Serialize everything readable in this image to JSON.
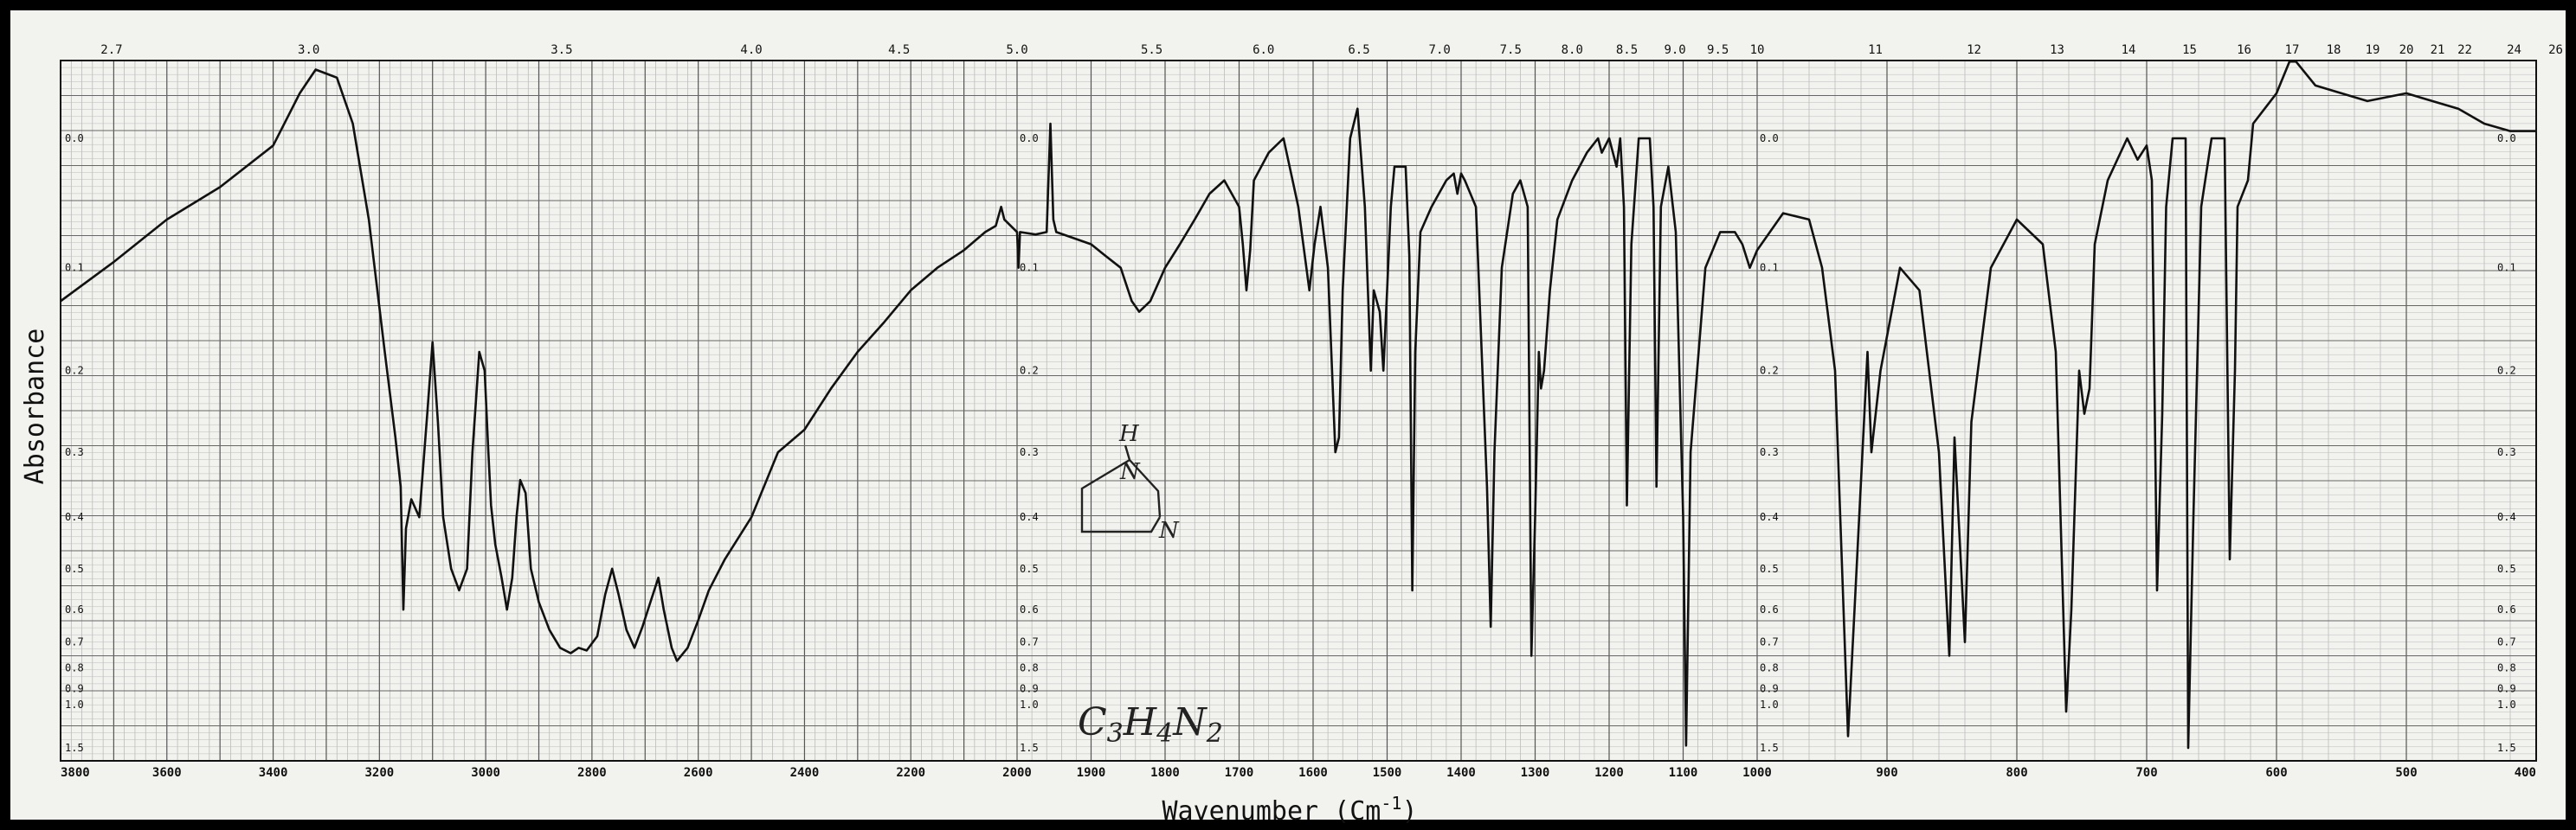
{
  "chart_data": {
    "type": "line",
    "title": "",
    "xlabel": "Wavenumber (Cm",
    "xlabel_sup": "-1",
    "xlabel_close": ")",
    "ylabel": "Absorbance",
    "x_axis": {
      "scale": "piecewise-linear",
      "range": [
        3800,
        400
      ],
      "break_points": [
        2000,
        1000
      ],
      "ticks": [
        3800,
        3600,
        3400,
        3200,
        3000,
        2800,
        2600,
        2400,
        2200,
        2000,
        1900,
        1800,
        1700,
        1600,
        1500,
        1400,
        1300,
        1200,
        1100,
        1000,
        900,
        800,
        700,
        600,
        500,
        400
      ]
    },
    "top_axis": {
      "unit": "microns",
      "ticks": [
        "2.7",
        "3.0",
        "3.5",
        "4.0",
        "4.5",
        "5.0",
        "5.5",
        "6.0",
        "6.5",
        "7.0",
        "7.5",
        "8.0",
        "8.5",
        "9.0",
        "9.5",
        "10",
        "11",
        "12",
        "13",
        "14",
        "15",
        "16",
        "17",
        "18",
        "19",
        "20",
        "21",
        "22",
        "24",
        "26"
      ],
      "tick_wavenumbers": [
        3704,
        3333,
        2857,
        2500,
        2222,
        2000,
        1818,
        1667,
        1538,
        1429,
        1333,
        1250,
        1176,
        1111,
        1053,
        1000,
        909,
        833,
        769,
        714,
        667,
        625,
        588,
        556,
        526,
        500,
        476,
        455,
        417,
        385
      ]
    },
    "y_axis": {
      "scale": "log-transmittance",
      "reversed": true,
      "range": [
        0,
        1.5
      ],
      "ticks": [
        "0.0",
        "0.1",
        "0.2",
        "0.3",
        "0.4",
        "0.5",
        "0.6",
        "0.7",
        "0.8",
        "0.9",
        "1.0",
        "1.5"
      ],
      "tick_values": [
        0,
        0.1,
        0.2,
        0.3,
        0.4,
        0.5,
        0.6,
        0.7,
        0.8,
        0.9,
        1.0,
        1.5
      ]
    },
    "grid": true,
    "legend": "none",
    "annotations": {
      "formula_parts": [
        "C",
        "3",
        "H",
        "4",
        "N",
        "2"
      ],
      "structure_atoms": [
        "H",
        "N",
        "N"
      ]
    },
    "series": [
      {
        "line_color": "#111111",
        "points": [
          [
            3800,
            0.13
          ],
          [
            3700,
            0.095
          ],
          [
            3600,
            0.06
          ],
          [
            3500,
            0.035
          ],
          [
            3400,
            0.005
          ],
          [
            3350,
            -0.03
          ],
          [
            3320,
            -0.045
          ],
          [
            3280,
            -0.04
          ],
          [
            3250,
            -0.01
          ],
          [
            3220,
            0.06
          ],
          [
            3190,
            0.18
          ],
          [
            3170,
            0.28
          ],
          [
            3160,
            0.35
          ],
          [
            3155,
            0.6
          ],
          [
            3150,
            0.42
          ],
          [
            3140,
            0.37
          ],
          [
            3125,
            0.4
          ],
          [
            3110,
            0.25
          ],
          [
            3100,
            0.17
          ],
          [
            3090,
            0.26
          ],
          [
            3080,
            0.4
          ],
          [
            3065,
            0.5
          ],
          [
            3050,
            0.55
          ],
          [
            3035,
            0.5
          ],
          [
            3025,
            0.3
          ],
          [
            3012,
            0.18
          ],
          [
            3002,
            0.2
          ],
          [
            2995,
            0.3
          ],
          [
            2990,
            0.38
          ],
          [
            2982,
            0.45
          ],
          [
            2970,
            0.52
          ],
          [
            2960,
            0.6
          ],
          [
            2950,
            0.52
          ],
          [
            2942,
            0.4
          ],
          [
            2935,
            0.34
          ],
          [
            2925,
            0.36
          ],
          [
            2915,
            0.5
          ],
          [
            2900,
            0.58
          ],
          [
            2880,
            0.66
          ],
          [
            2860,
            0.72
          ],
          [
            2840,
            0.74
          ],
          [
            2825,
            0.72
          ],
          [
            2810,
            0.73
          ],
          [
            2790,
            0.68
          ],
          [
            2775,
            0.56
          ],
          [
            2762,
            0.5
          ],
          [
            2750,
            0.56
          ],
          [
            2735,
            0.66
          ],
          [
            2720,
            0.72
          ],
          [
            2705,
            0.65
          ],
          [
            2690,
            0.58
          ],
          [
            2675,
            0.52
          ],
          [
            2665,
            0.6
          ],
          [
            2650,
            0.72
          ],
          [
            2640,
            0.77
          ],
          [
            2620,
            0.72
          ],
          [
            2600,
            0.63
          ],
          [
            2580,
            0.55
          ],
          [
            2550,
            0.48
          ],
          [
            2500,
            0.4
          ],
          [
            2450,
            0.3
          ],
          [
            2400,
            0.27
          ],
          [
            2350,
            0.22
          ],
          [
            2300,
            0.18
          ],
          [
            2250,
            0.15
          ],
          [
            2200,
            0.12
          ],
          [
            2150,
            0.1
          ],
          [
            2100,
            0.085
          ],
          [
            2060,
            0.07
          ],
          [
            2040,
            0.065
          ],
          [
            2030,
            0.05
          ],
          [
            2024,
            0.06
          ],
          [
            2000,
            0.07
          ],
          [
            1998,
            0.1
          ],
          [
            1996,
            0.07
          ],
          [
            1975,
            0.072
          ],
          [
            1960,
            0.07
          ],
          [
            1955,
            -0.01
          ],
          [
            1951,
            0.06
          ],
          [
            1947,
            0.07
          ],
          [
            1900,
            0.08
          ],
          [
            1880,
            0.09
          ],
          [
            1860,
            0.1
          ],
          [
            1845,
            0.13
          ],
          [
            1835,
            0.14
          ],
          [
            1820,
            0.13
          ],
          [
            1800,
            0.1
          ],
          [
            1780,
            0.08
          ],
          [
            1760,
            0.06
          ],
          [
            1740,
            0.04
          ],
          [
            1720,
            0.03
          ],
          [
            1700,
            0.05
          ],
          [
            1695,
            0.08
          ],
          [
            1690,
            0.12
          ],
          [
            1685,
            0.085
          ],
          [
            1680,
            0.03
          ],
          [
            1660,
            0.01
          ],
          [
            1640,
            0.0
          ],
          [
            1620,
            0.05
          ],
          [
            1605,
            0.12
          ],
          [
            1598,
            0.08
          ],
          [
            1590,
            0.05
          ],
          [
            1580,
            0.1
          ],
          [
            1570,
            0.3
          ],
          [
            1565,
            0.28
          ],
          [
            1560,
            0.12
          ],
          [
            1550,
            0.0
          ],
          [
            1540,
            -0.02
          ],
          [
            1530,
            0.05
          ],
          [
            1522,
            0.2
          ],
          [
            1518,
            0.12
          ],
          [
            1510,
            0.14
          ],
          [
            1505,
            0.2
          ],
          [
            1500,
            0.12
          ],
          [
            1495,
            0.05
          ],
          [
            1490,
            0.02
          ],
          [
            1475,
            0.02
          ],
          [
            1470,
            0.09
          ],
          [
            1466,
            0.55
          ],
          [
            1462,
            0.18
          ],
          [
            1455,
            0.07
          ],
          [
            1440,
            0.05
          ],
          [
            1420,
            0.03
          ],
          [
            1410,
            0.025
          ],
          [
            1405,
            0.04
          ],
          [
            1400,
            0.025
          ],
          [
            1395,
            0.03
          ],
          [
            1380,
            0.05
          ],
          [
            1365,
            0.35
          ],
          [
            1360,
            0.65
          ],
          [
            1355,
            0.3
          ],
          [
            1345,
            0.1
          ],
          [
            1330,
            0.04
          ],
          [
            1320,
            0.03
          ],
          [
            1310,
            0.05
          ],
          [
            1305,
            0.75
          ],
          [
            1300,
            0.4
          ],
          [
            1295,
            0.18
          ],
          [
            1292,
            0.22
          ],
          [
            1288,
            0.2
          ],
          [
            1280,
            0.12
          ],
          [
            1270,
            0.06
          ],
          [
            1250,
            0.03
          ],
          [
            1230,
            0.01
          ],
          [
            1215,
            0.0
          ],
          [
            1210,
            0.01
          ],
          [
            1200,
            0.0
          ],
          [
            1190,
            0.02
          ],
          [
            1185,
            0.0
          ],
          [
            1180,
            0.05
          ],
          [
            1176,
            0.38
          ],
          [
            1170,
            0.08
          ],
          [
            1160,
            0.0
          ],
          [
            1145,
            0.0
          ],
          [
            1140,
            0.05
          ],
          [
            1136,
            0.35
          ],
          [
            1130,
            0.05
          ],
          [
            1120,
            0.02
          ],
          [
            1110,
            0.07
          ],
          [
            1100,
            0.4
          ],
          [
            1096,
            1.45
          ],
          [
            1090,
            0.3
          ],
          [
            1070,
            0.1
          ],
          [
            1050,
            0.07
          ],
          [
            1030,
            0.07
          ],
          [
            1020,
            0.08
          ],
          [
            1010,
            0.1
          ],
          [
            1000,
            0.085
          ],
          [
            980,
            0.055
          ],
          [
            960,
            0.06
          ],
          [
            950,
            0.1
          ],
          [
            940,
            0.2
          ],
          [
            930,
            1.3
          ],
          [
            925,
            0.6
          ],
          [
            915,
            0.18
          ],
          [
            912,
            0.3
          ],
          [
            905,
            0.2
          ],
          [
            890,
            0.1
          ],
          [
            875,
            0.12
          ],
          [
            860,
            0.3
          ],
          [
            852,
            0.75
          ],
          [
            848,
            0.28
          ],
          [
            840,
            0.7
          ],
          [
            835,
            0.26
          ],
          [
            820,
            0.1
          ],
          [
            800,
            0.06
          ],
          [
            780,
            0.08
          ],
          [
            770,
            0.18
          ],
          [
            762,
            1.05
          ],
          [
            758,
            0.6
          ],
          [
            752,
            0.2
          ],
          [
            748,
            0.25
          ],
          [
            744,
            0.22
          ],
          [
            740,
            0.08
          ],
          [
            730,
            0.03
          ],
          [
            715,
            0.0
          ],
          [
            707,
            0.015
          ],
          [
            700,
            0.005
          ],
          [
            696,
            0.03
          ],
          [
            692,
            0.55
          ],
          [
            688,
            0.25
          ],
          [
            685,
            0.05
          ],
          [
            680,
            0.0
          ],
          [
            670,
            0.0
          ],
          [
            668,
            1.5
          ],
          [
            664,
            0.4
          ],
          [
            658,
            0.05
          ],
          [
            650,
            0.0
          ],
          [
            640,
            0.0
          ],
          [
            636,
            0.48
          ],
          [
            632,
            0.2
          ],
          [
            630,
            0.05
          ],
          [
            622,
            0.03
          ],
          [
            618,
            -0.01
          ],
          [
            600,
            -0.03
          ],
          [
            590,
            -0.05
          ],
          [
            585,
            -0.05
          ],
          [
            570,
            -0.035
          ],
          [
            550,
            -0.03
          ],
          [
            530,
            -0.025
          ],
          [
            500,
            -0.03
          ],
          [
            480,
            -0.025
          ],
          [
            460,
            -0.02
          ],
          [
            440,
            -0.01
          ],
          [
            420,
            -0.005
          ],
          [
            400,
            -0.005
          ]
        ]
      }
    ]
  }
}
